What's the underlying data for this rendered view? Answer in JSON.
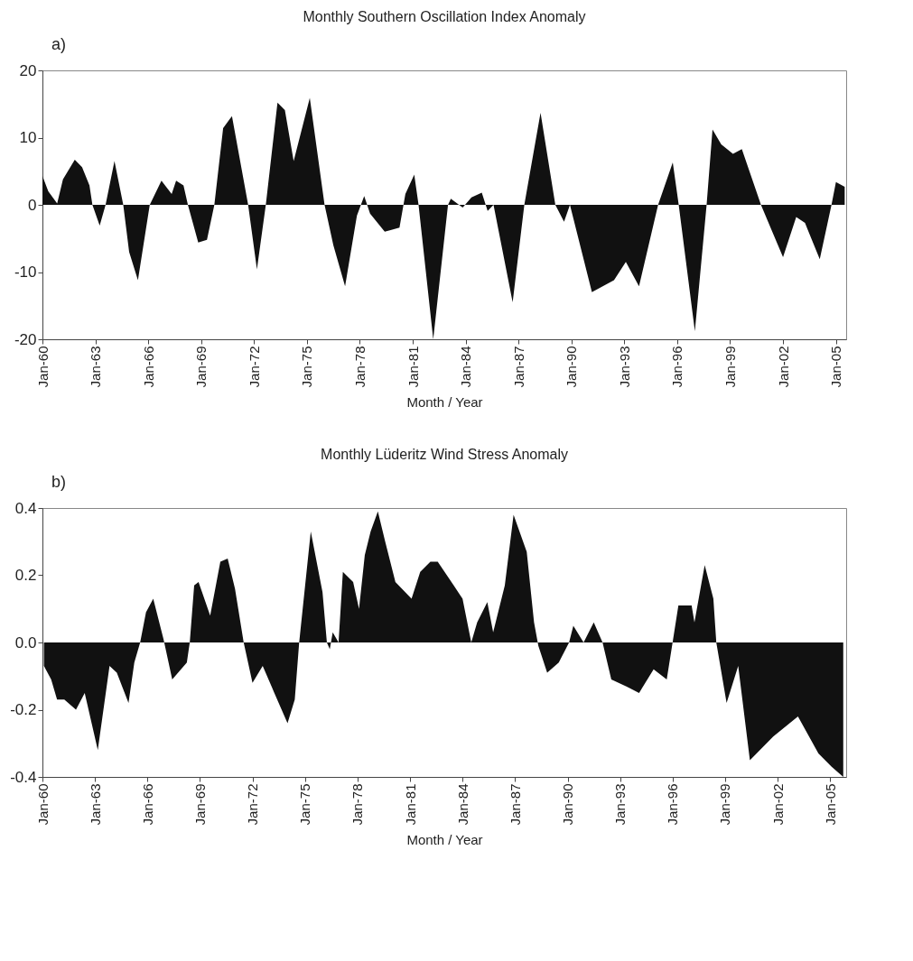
{
  "chart_data": [
    {
      "type": "area",
      "title": "Monthly Southern Oscillation Index Anomaly",
      "xlabel": "Month / Year",
      "annotations": [
        "a)"
      ],
      "color": "#111111",
      "x": [
        "1960-01",
        "1960-05",
        "1960-11",
        "1961-03",
        "1961-11",
        "1962-04",
        "1962-09",
        "1962-11",
        "1963-04",
        "1963-08",
        "1964-02",
        "1964-08",
        "1964-12",
        "1965-06",
        "1966-02",
        "1966-10",
        "1967-05",
        "1967-08",
        "1968-01",
        "1968-04",
        "1968-11",
        "1969-05",
        "1969-10",
        "1970-04",
        "1970-10",
        "1971-09",
        "1972-03",
        "1972-09",
        "1973-05",
        "1973-10",
        "1974-04",
        "1975-03",
        "1976-01",
        "1976-07",
        "1977-03",
        "1977-11",
        "1978-04",
        "1978-08",
        "1979-06",
        "1980-04",
        "1980-08",
        "1981-02",
        "1981-05",
        "1982-03",
        "1983-01",
        "1983-03",
        "1983-11",
        "1984-05",
        "1984-12",
        "1985-04",
        "1985-08",
        "1986-09",
        "1987-05",
        "1988-04",
        "1989-02",
        "1989-08",
        "1989-12",
        "1991-03",
        "1992-06",
        "1993-02",
        "1993-11",
        "1994-12",
        "1995-10",
        "1996-02",
        "1997-01",
        "1997-09",
        "1998-01",
        "1998-07",
        "1999-03",
        "1999-09",
        "2000-10",
        "2002-01",
        "2002-10",
        "2003-04",
        "2004-02",
        "2004-10",
        "2005-01",
        "2005-07"
      ],
      "values": [
        4.3,
        2,
        0.2,
        3.8,
        6.7,
        5.6,
        2.9,
        0,
        -3.1,
        0,
        6.5,
        0,
        -7,
        -11.2,
        0,
        3.6,
        1.6,
        3.6,
        2.9,
        0,
        -5.6,
        -5.2,
        0,
        11.4,
        13.2,
        0,
        -9.6,
        0,
        15.2,
        14.1,
        6.5,
        15.9,
        0,
        -6,
        -12.1,
        -1.6,
        1.3,
        -1.3,
        -4,
        -3.4,
        1.6,
        4.5,
        0,
        -20,
        0,
        0.9,
        -0.4,
        1.1,
        1.8,
        -0.9,
        0,
        -14.5,
        0,
        13.7,
        0,
        -2.5,
        0,
        -13,
        -11.2,
        -8.5,
        -12.1,
        0,
        6.3,
        0,
        -18.8,
        0,
        11.2,
        9,
        7.6,
        8.3,
        0,
        -7.8,
        -1.8,
        -2.7,
        -8.1,
        0,
        3.4,
        2.7
      ],
      "xlim": [
        "1960-01",
        "2005-08"
      ],
      "xticks": [
        {
          "value": "1960-01",
          "label": "Jan-60"
        },
        {
          "value": "1963-01",
          "label": "Jan-63"
        },
        {
          "value": "1966-01",
          "label": "Jan-66"
        },
        {
          "value": "1969-01",
          "label": "Jan-69"
        },
        {
          "value": "1972-01",
          "label": "Jan-72"
        },
        {
          "value": "1975-01",
          "label": "Jan-75"
        },
        {
          "value": "1978-01",
          "label": "Jan-78"
        },
        {
          "value": "1981-01",
          "label": "Jan-81"
        },
        {
          "value": "1984-01",
          "label": "Jan-84"
        },
        {
          "value": "1987-01",
          "label": "Jan-87"
        },
        {
          "value": "1990-01",
          "label": "Jan-90"
        },
        {
          "value": "1993-01",
          "label": "Jan-93"
        },
        {
          "value": "1996-01",
          "label": "Jan-96"
        },
        {
          "value": "1999-01",
          "label": "Jan-99"
        },
        {
          "value": "2002-01",
          "label": "Jan-02"
        },
        {
          "value": "2005-01",
          "label": "Jan-05"
        }
      ],
      "ylim": [
        -20,
        20
      ],
      "yticks": [
        -20,
        -10,
        0,
        10,
        20
      ],
      "grid": false
    },
    {
      "type": "area",
      "title": "Monthly Lüderitz Wind Stress Anomaly",
      "xlabel": "Month / Year",
      "annotations": [
        "b)"
      ],
      "color": "#111111",
      "x": [
        "1960-02",
        "1960-07",
        "1960-11",
        "1961-04",
        "1961-12",
        "1962-06",
        "1963-03",
        "1963-11",
        "1964-04",
        "1964-12",
        "1965-04",
        "1965-08",
        "1965-12",
        "1966-05",
        "1966-12",
        "1967-06",
        "1967-10",
        "1968-04",
        "1968-06",
        "1968-09",
        "1968-12",
        "1969-04",
        "1969-08",
        "1970-03",
        "1970-08",
        "1971-01",
        "1971-07",
        "1972-01",
        "1972-08",
        "1973-04",
        "1974-01",
        "1974-06",
        "1974-09",
        "1975-05",
        "1976-01",
        "1976-04",
        "1976-06",
        "1976-08",
        "1976-12",
        "1977-03",
        "1977-10",
        "1978-02",
        "1978-06",
        "1978-10",
        "1979-03",
        "1979-08",
        "1980-03",
        "1981-02",
        "1981-08",
        "1982-03",
        "1982-08",
        "1983-07",
        "1984-01",
        "1984-07",
        "1984-11",
        "1985-06",
        "1985-10",
        "1986-06",
        "1986-12",
        "1987-09",
        "1988-02",
        "1988-05",
        "1988-11",
        "1989-07",
        "1990-02",
        "1990-05",
        "1990-12",
        "1991-07",
        "1992-01",
        "1992-07",
        "1993-05",
        "1994-02",
        "1994-12",
        "1995-09",
        "1996-01",
        "1996-05",
        "1997-02",
        "1997-04",
        "1997-11",
        "1998-05",
        "1998-07",
        "1999-02",
        "1999-10",
        "2000-06",
        "2001-10",
        "2003-03",
        "2004-05",
        "2005-02",
        "2005-10"
      ],
      "values": [
        -0.07,
        -0.11,
        -0.17,
        -0.17,
        -0.2,
        -0.15,
        -0.32,
        -0.07,
        -0.09,
        -0.18,
        -0.06,
        0,
        0.09,
        0.13,
        0.01,
        -0.11,
        -0.09,
        -0.06,
        0,
        0.17,
        0.18,
        0.13,
        0.08,
        0.24,
        0.25,
        0.16,
        0,
        -0.12,
        -0.07,
        -0.15,
        -0.24,
        -0.17,
        0,
        0.33,
        0.15,
        0,
        -0.02,
        0.03,
        0,
        0.21,
        0.18,
        0.1,
        0.26,
        0.33,
        0.39,
        0.3,
        0.18,
        0.13,
        0.21,
        0.24,
        0.24,
        0.17,
        0.13,
        0,
        0.06,
        0.12,
        0.03,
        0.17,
        0.38,
        0.27,
        0.06,
        -0.01,
        -0.09,
        -0.06,
        0,
        0.05,
        0,
        0.06,
        0,
        -0.11,
        -0.13,
        -0.15,
        -0.08,
        -0.11,
        0,
        0.11,
        0.11,
        0.06,
        0.23,
        0.13,
        0,
        -0.18,
        -0.07,
        -0.35,
        -0.28,
        -0.22,
        -0.33,
        -0.37,
        -0.4
      ],
      "xlim": [
        "1960-01",
        "2005-12"
      ],
      "xticks": [
        {
          "value": "1960-01",
          "label": "Jan-60"
        },
        {
          "value": "1963-01",
          "label": "Jan-63"
        },
        {
          "value": "1966-01",
          "label": "Jan-66"
        },
        {
          "value": "1969-01",
          "label": "Jan-69"
        },
        {
          "value": "1972-01",
          "label": "Jan-72"
        },
        {
          "value": "1975-01",
          "label": "Jan-75"
        },
        {
          "value": "1978-01",
          "label": "Jan-78"
        },
        {
          "value": "1981-01",
          "label": "Jan-81"
        },
        {
          "value": "1984-01",
          "label": "Jan-84"
        },
        {
          "value": "1987-01",
          "label": "Jan-87"
        },
        {
          "value": "1990-01",
          "label": "Jan-90"
        },
        {
          "value": "1993-01",
          "label": "Jan-93"
        },
        {
          "value": "1996-01",
          "label": "Jan-96"
        },
        {
          "value": "1999-01",
          "label": "Jan-99"
        },
        {
          "value": "2002-01",
          "label": "Jan-02"
        },
        {
          "value": "2005-01",
          "label": "Jan-05"
        }
      ],
      "ylim": [
        -0.4,
        0.4
      ],
      "yticks": [
        -0.4,
        -0.2,
        {
          "value": 0,
          "label": "0.0"
        },
        0.2,
        0.4
      ],
      "grid": false
    }
  ]
}
